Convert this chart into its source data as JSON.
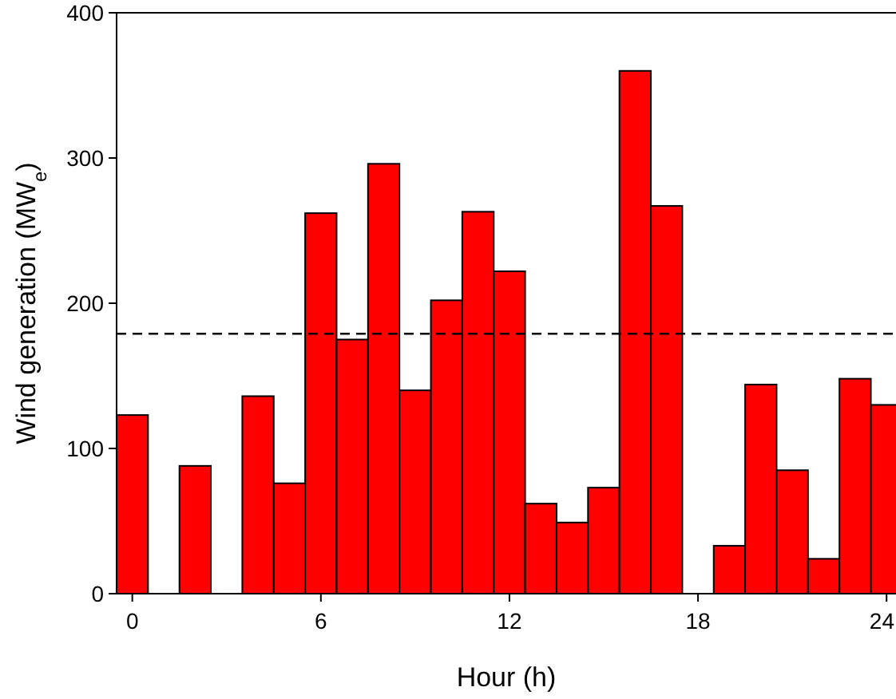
{
  "chart_data": {
    "type": "bar",
    "xlabel": "Hour (h)",
    "ylabel": "Wind generation (MW$_{e}$)",
    "x": [
      0,
      1,
      2,
      3,
      4,
      5,
      6,
      7,
      8,
      9,
      10,
      11,
      12,
      13,
      14,
      15,
      16,
      17,
      18,
      19,
      20,
      21,
      22,
      23,
      24
    ],
    "values": [
      123,
      0,
      88,
      0,
      136,
      76,
      262,
      175,
      296,
      140,
      202,
      263,
      222,
      62,
      49,
      73,
      360,
      267,
      0,
      33,
      144,
      85,
      24,
      148,
      130
    ],
    "color": "#ff0000",
    "xlim": [
      -0.5,
      24.3
    ],
    "xticks": [
      0,
      6,
      12,
      18,
      24
    ],
    "ylim": [
      0,
      400
    ],
    "yticks": [
      0,
      100,
      200,
      300,
      400
    ],
    "ref_lines": [
      {
        "axis": "y",
        "value": 179,
        "line_style": "dashed",
        "color": "#000000"
      }
    ],
    "grid": false
  }
}
